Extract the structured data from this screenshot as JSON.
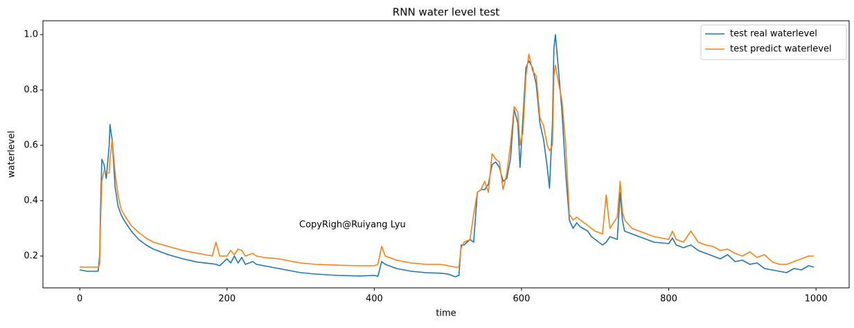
{
  "chart_data": {
    "type": "line",
    "title": "RNN water level test",
    "xlabel": "time",
    "ylabel": "waterlevel",
    "annotation": "CopyRigh@Ruiyang Lyu",
    "x": [
      0,
      10,
      25,
      27,
      28,
      30,
      33,
      36,
      40,
      41,
      44,
      48,
      52,
      56,
      60,
      70,
      80,
      90,
      100,
      120,
      140,
      160,
      180,
      185,
      190,
      200,
      205,
      210,
      215,
      220,
      225,
      235,
      240,
      250,
      270,
      300,
      320,
      350,
      380,
      400,
      405,
      410,
      415,
      430,
      450,
      470,
      490,
      500,
      510,
      515,
      518,
      522,
      530,
      535,
      540,
      545,
      550,
      555,
      560,
      565,
      570,
      575,
      580,
      585,
      590,
      595,
      598,
      602,
      606,
      610,
      615,
      620,
      625,
      630,
      635,
      638,
      642,
      644,
      646,
      650,
      655,
      660,
      665,
      670,
      675,
      680,
      690,
      695,
      700,
      710,
      715,
      720,
      730,
      734,
      737,
      740,
      750,
      760,
      780,
      800,
      805,
      810,
      820,
      830,
      840,
      850,
      860,
      870,
      880,
      890,
      900,
      910,
      920,
      930,
      940,
      950,
      960,
      970,
      980,
      990,
      997
    ],
    "series": [
      {
        "name": "test real waterlevel",
        "color": "#1f77b4",
        "values": [
          0.15,
          0.145,
          0.145,
          0.2,
          0.35,
          0.55,
          0.53,
          0.48,
          0.6,
          0.675,
          0.62,
          0.45,
          0.38,
          0.35,
          0.33,
          0.29,
          0.26,
          0.24,
          0.225,
          0.205,
          0.19,
          0.178,
          0.172,
          0.17,
          0.165,
          0.19,
          0.175,
          0.2,
          0.175,
          0.195,
          0.17,
          0.18,
          0.17,
          0.165,
          0.155,
          0.14,
          0.135,
          0.13,
          0.128,
          0.13,
          0.127,
          0.18,
          0.17,
          0.155,
          0.145,
          0.14,
          0.138,
          0.135,
          0.125,
          0.13,
          0.24,
          0.24,
          0.26,
          0.25,
          0.43,
          0.44,
          0.44,
          0.46,
          0.53,
          0.54,
          0.52,
          0.47,
          0.48,
          0.55,
          0.73,
          0.68,
          0.52,
          0.7,
          0.88,
          0.905,
          0.88,
          0.82,
          0.68,
          0.62,
          0.52,
          0.445,
          0.68,
          0.95,
          1.0,
          0.88,
          0.72,
          0.5,
          0.33,
          0.3,
          0.32,
          0.305,
          0.29,
          0.27,
          0.26,
          0.24,
          0.25,
          0.27,
          0.26,
          0.43,
          0.33,
          0.29,
          0.28,
          0.27,
          0.25,
          0.245,
          0.265,
          0.24,
          0.23,
          0.24,
          0.22,
          0.21,
          0.2,
          0.19,
          0.205,
          0.18,
          0.185,
          0.17,
          0.175,
          0.155,
          0.15,
          0.145,
          0.14,
          0.155,
          0.15,
          0.165,
          0.16
        ]
      },
      {
        "name": "test predict waterlevel",
        "color": "#ff7f0e",
        "values": [
          0.16,
          0.16,
          0.16,
          0.17,
          0.3,
          0.47,
          0.51,
          0.5,
          0.5,
          0.55,
          0.62,
          0.5,
          0.42,
          0.37,
          0.35,
          0.31,
          0.285,
          0.265,
          0.25,
          0.235,
          0.22,
          0.21,
          0.2,
          0.25,
          0.2,
          0.2,
          0.22,
          0.205,
          0.225,
          0.22,
          0.2,
          0.21,
          0.2,
          0.195,
          0.19,
          0.175,
          0.17,
          0.167,
          0.165,
          0.165,
          0.17,
          0.235,
          0.2,
          0.185,
          0.175,
          0.17,
          0.17,
          0.165,
          0.16,
          0.16,
          0.23,
          0.25,
          0.26,
          0.35,
          0.43,
          0.44,
          0.47,
          0.43,
          0.57,
          0.55,
          0.54,
          0.44,
          0.5,
          0.6,
          0.74,
          0.72,
          0.6,
          0.65,
          0.85,
          0.93,
          0.87,
          0.85,
          0.7,
          0.67,
          0.6,
          0.58,
          0.6,
          0.85,
          0.89,
          0.83,
          0.76,
          0.6,
          0.35,
          0.33,
          0.34,
          0.33,
          0.31,
          0.3,
          0.29,
          0.28,
          0.42,
          0.3,
          0.34,
          0.47,
          0.36,
          0.33,
          0.3,
          0.29,
          0.27,
          0.26,
          0.29,
          0.26,
          0.25,
          0.29,
          0.25,
          0.24,
          0.235,
          0.22,
          0.225,
          0.21,
          0.2,
          0.215,
          0.195,
          0.205,
          0.18,
          0.17,
          0.17,
          0.18,
          0.19,
          0.2,
          0.2
        ]
      }
    ],
    "xlim": [
      -50,
      1045
    ],
    "ylim": [
      0.085,
      1.05
    ],
    "xticks": [
      0,
      200,
      400,
      600,
      800,
      1000
    ],
    "yticks": [
      0.2,
      0.4,
      0.6,
      0.8,
      {
        "value": 1,
        "label": "1.0"
      }
    ],
    "legend": "upper right"
  }
}
